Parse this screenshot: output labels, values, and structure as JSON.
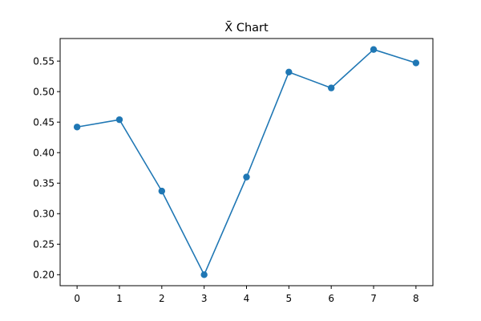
{
  "chart_data": {
    "type": "line",
    "title": "X̄ Chart",
    "xlabel": "",
    "ylabel": "",
    "x": [
      0,
      1,
      2,
      3,
      4,
      5,
      6,
      7,
      8
    ],
    "series": [
      {
        "values": [
          0.442,
          0.454,
          0.337,
          0.2,
          0.36,
          0.532,
          0.506,
          0.569,
          0.547
        ],
        "color": "#1f77b4",
        "marker": "circle"
      }
    ],
    "xlim": [
      -0.4,
      8.4
    ],
    "ylim": [
      0.182,
      0.587
    ],
    "xticks": [
      0,
      1,
      2,
      3,
      4,
      5,
      6,
      7,
      8
    ],
    "yticks": [
      0.2,
      0.25,
      0.3,
      0.35,
      0.4,
      0.45,
      0.5,
      0.55
    ],
    "ytick_labels": [
      "0.20",
      "0.25",
      "0.30",
      "0.35",
      "0.40",
      "0.45",
      "0.50",
      "0.55"
    ],
    "grid": false,
    "legend": false
  }
}
